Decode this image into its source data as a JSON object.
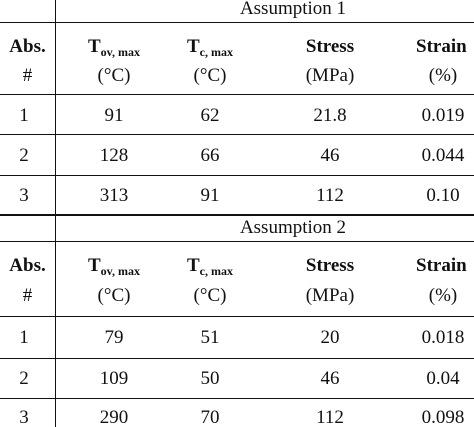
{
  "sections": [
    {
      "title": "Assumption 1",
      "headers": {
        "abs": "Abs.",
        "abs_unit": "#",
        "tov_main": "T",
        "tov_sub": "ov, max",
        "tov_unit": "(°C)",
        "tc_main": "T",
        "tc_sub": "c, max",
        "tc_unit": "(°C)",
        "stress": "Stress",
        "stress_unit": "(MPa)",
        "strain": "Strain",
        "strain_unit": "(%)"
      },
      "rows": [
        [
          "1",
          "91",
          "62",
          "21.8",
          "0.019"
        ],
        [
          "2",
          "128",
          "66",
          "46",
          "0.044"
        ],
        [
          "3",
          "313",
          "91",
          "112",
          "0.10"
        ]
      ]
    },
    {
      "title": "Assumption 2",
      "headers": {
        "abs": "Abs.",
        "abs_unit": "#",
        "tov_main": "T",
        "tov_sub": "ov, max",
        "tov_unit": "(°C)",
        "tc_main": "T",
        "tc_sub": "c, max",
        "tc_unit": "(°C)",
        "stress": "Stress",
        "stress_unit": "(MPa)",
        "strain": "Strain",
        "strain_unit": "(%)"
      },
      "rows": [
        [
          "1",
          "79",
          "51",
          "20",
          "0.018"
        ],
        [
          "2",
          "109",
          "50",
          "46",
          "0.04"
        ],
        [
          "3",
          "290",
          "70",
          "112",
          "0.098"
        ]
      ]
    }
  ]
}
